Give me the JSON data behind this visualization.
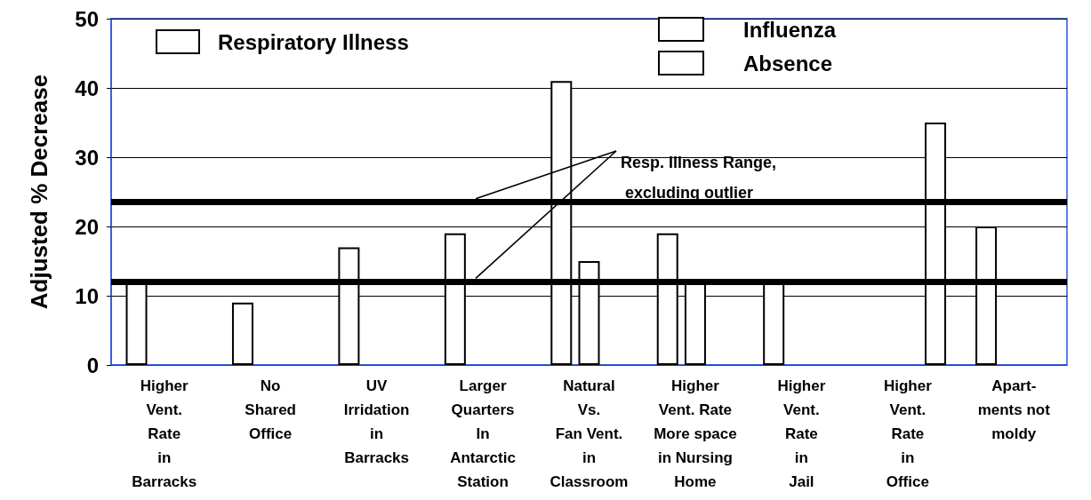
{
  "chart_data": {
    "type": "bar",
    "ylabel": "Adjusted % Decrease",
    "categories": [
      "Higher\nVent.\nRate\nin\nBarracks",
      "No\nShared\nOffice",
      "UV\nIrridation\nin\nBarracks",
      "Larger\nQuarters\nIn\nAntarctic\nStation",
      "Natural\nVs.\nFan Vent.\nin\nClassroom",
      "Higher\nVent. Rate\nMore space\nin Nursing\nHome",
      "Higher\nVent.\nRate\nin\nJail",
      "Higher\nVent.\nRate\nin\nOffice",
      "Apart-\nments not\nmoldy"
    ],
    "series": [
      {
        "name": "Respiratory Illness",
        "color": "#ffffff",
        "values": [
          12,
          9,
          17,
          19,
          41,
          19,
          12,
          null,
          20
        ]
      },
      {
        "name": "Influenza",
        "color": "#ffffff",
        "values": [
          null,
          null,
          null,
          null,
          15,
          12,
          null,
          null,
          null
        ]
      },
      {
        "name": "Absence",
        "color": "#ffffff",
        "values": [
          null,
          null,
          null,
          null,
          null,
          null,
          null,
          35,
          null
        ]
      }
    ],
    "ylim": [
      0,
      50
    ],
    "yticks": [
      0,
      10,
      20,
      30,
      40,
      50
    ],
    "grid": "y",
    "legend": "top",
    "ref_lines": [
      {
        "axis": "y",
        "value": 23.5,
        "label": null,
        "color": "#000000"
      },
      {
        "axis": "y",
        "value": 12,
        "label": null,
        "color": "#000000"
      }
    ],
    "annotations": [
      "Resp. Illness Range,\n excluding outlier"
    ]
  }
}
